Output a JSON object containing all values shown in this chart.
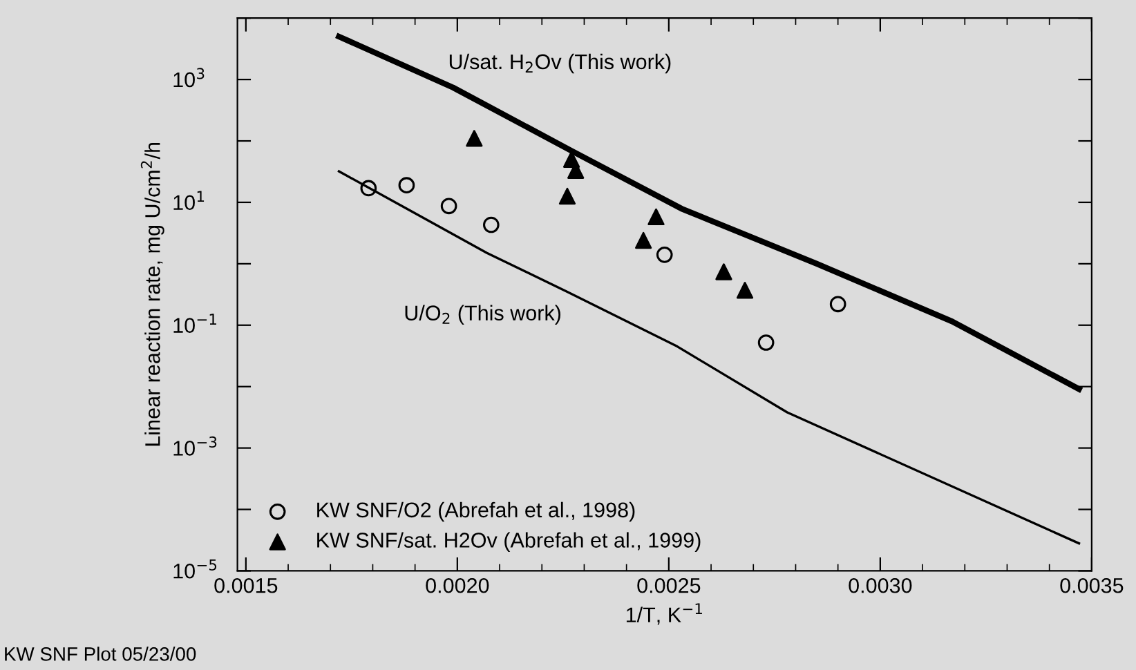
{
  "chart_data": {
    "type": "scatter",
    "xlabel": "1/T, K$^{−1}$",
    "ylabel": "Linear reaction rate, mg U/cm$^{2}$/h",
    "log": "y",
    "xlim": [
      0.00148,
      0.0035
    ],
    "ylim": [
      1e-05,
      10000
    ],
    "xticks": [
      {
        "value": 0.0015,
        "label": "0.0015"
      },
      {
        "value": 0.002,
        "label": "0.0020"
      },
      {
        "value": 0.0025,
        "label": "0.0025"
      },
      {
        "value": 0.003,
        "label": "0.0030"
      },
      {
        "value": 0.0035,
        "label": "0.0035"
      }
    ],
    "yticks": [
      {
        "value": 1e-05,
        "label": "10$^{−5}$"
      },
      {
        "value": 0.0001,
        "label": null
      },
      {
        "value": 0.001,
        "label": "10$^{−3}$"
      },
      {
        "value": 0.01,
        "label": null
      },
      {
        "value": 0.1,
        "label": "10$^{−1}$"
      },
      {
        "value": 1,
        "label": null
      },
      {
        "value": 10,
        "label": "10$^{1}$"
      },
      {
        "value": 100,
        "label": null
      },
      {
        "value": 1000,
        "label": "10$^{3}$"
      },
      {
        "value": 10000,
        "label": null
      }
    ],
    "grid": false,
    "legend": "bottom left",
    "series": [
      {
        "type": "line",
        "color": "#000000",
        "line_style": "solid",
        "marker": "none",
        "x": [
          0.00172,
          0.00199,
          0.00227,
          0.00253,
          0.00285,
          0.00317,
          0.00347
        ],
        "values": [
          5000,
          740,
          69,
          7.9,
          1.0,
          0.115,
          0.0091
        ]
      },
      {
        "type": "line",
        "color": "#000000",
        "line_style": "solid",
        "marker": "none",
        "x": [
          0.00172,
          0.00188,
          0.00207,
          0.00226,
          0.00252,
          0.00278,
          0.00347
        ],
        "values": [
          32,
          7.9,
          1.5,
          0.35,
          0.045,
          0.0038,
          2.8e-05
        ]
      },
      {
        "name": "KW SNF/O2 (Abrefah et al., 1998)",
        "color": "#000000",
        "marker": "circle",
        "x": [
          0.00179,
          0.00188,
          0.00198,
          0.00208,
          0.00249,
          0.00273,
          0.0029
        ],
        "values": [
          17,
          19,
          8.7,
          4.3,
          1.4,
          0.052,
          0.22
        ]
      },
      {
        "name": "KW SNF/sat. H2Ov (Abrefah et al., 1999)",
        "color": "#000000",
        "marker": "triangle",
        "x": [
          0.00204,
          0.00227,
          0.00228,
          0.00226,
          0.00247,
          0.00244,
          0.00263,
          0.00268
        ],
        "values": [
          110,
          50,
          33,
          12.6,
          5.8,
          2.4,
          0.74,
          0.37
        ]
      }
    ],
    "annotations": [
      "U/sat. H$_{2}$Ov (This work)",
      "U/O$_{2}$ (This work)",
      "KW SNF Plot 05/23/00"
    ]
  }
}
